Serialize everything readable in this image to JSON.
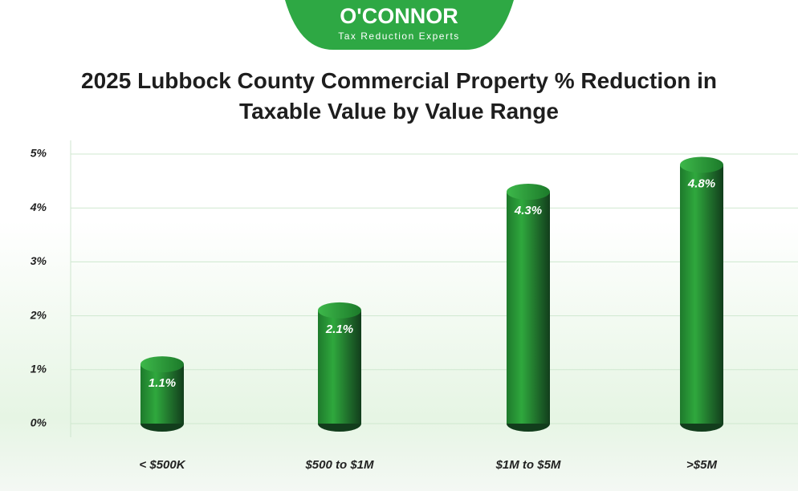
{
  "brand": {
    "name": "O'CONNOR",
    "tagline": "Tax Reduction Experts"
  },
  "chart_data": {
    "type": "bar",
    "title": "2025 Lubbock County Commercial Property % Reduction in Taxable Value by Value Range",
    "categories": [
      "< $500K",
      "$500 to $1M",
      "$1M to $5M",
      ">$5M"
    ],
    "values": [
      1.1,
      2.1,
      4.3,
      4.8
    ],
    "value_labels": [
      "1.1%",
      "2.1%",
      "4.3%",
      "4.8%"
    ],
    "color": "#2fa83d",
    "ylim": [
      0,
      5
    ],
    "yticks": [
      {
        "value": 0,
        "label": "0%"
      },
      {
        "value": 1,
        "label": "1%"
      },
      {
        "value": 2,
        "label": "2%"
      },
      {
        "value": 3,
        "label": "3%"
      },
      {
        "value": 4,
        "label": "4%"
      },
      {
        "value": 5,
        "label": "5%"
      }
    ],
    "grid": true
  }
}
